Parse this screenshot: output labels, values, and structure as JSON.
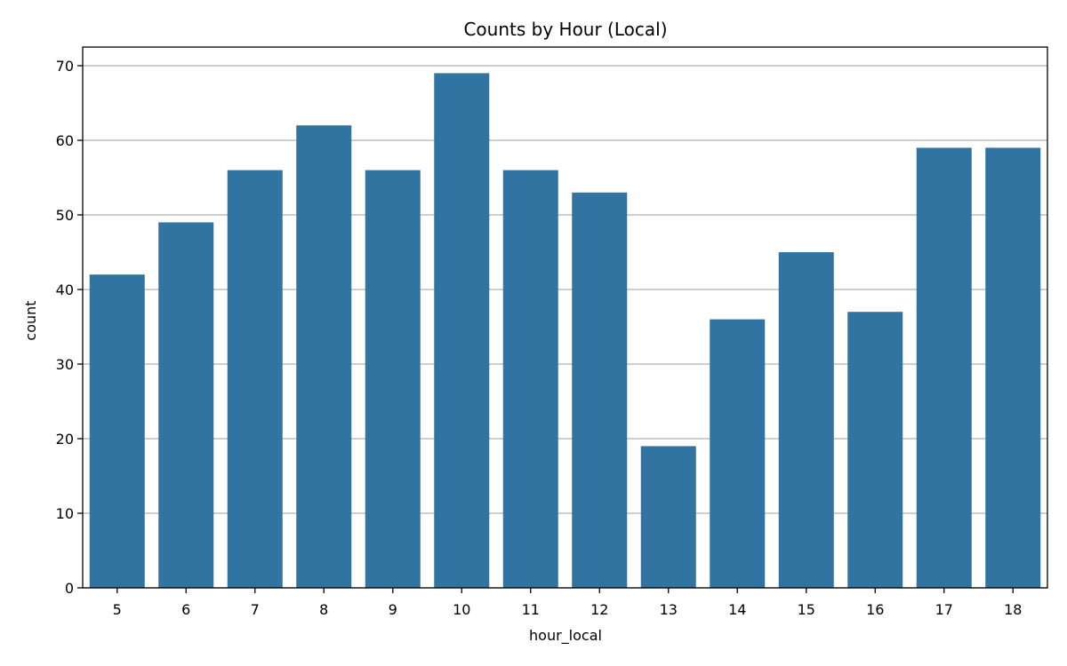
{
  "chart_data": {
    "type": "bar",
    "title": "Counts by Hour (Local)",
    "xlabel": "hour_local",
    "ylabel": "count",
    "categories": [
      "5",
      "6",
      "7",
      "8",
      "9",
      "10",
      "11",
      "12",
      "13",
      "14",
      "15",
      "16",
      "17",
      "18"
    ],
    "values": [
      42,
      49,
      56,
      62,
      56,
      69,
      56,
      53,
      19,
      36,
      45,
      37,
      59,
      59
    ],
    "ylim": [
      0,
      72.5
    ],
    "yticks": [
      0,
      10,
      20,
      30,
      40,
      50,
      60,
      70
    ],
    "grid": "y-major",
    "legend": "none",
    "bar_color": "#3274a1",
    "grid_color": "#b0b0b0",
    "axis_color": "#000000"
  }
}
